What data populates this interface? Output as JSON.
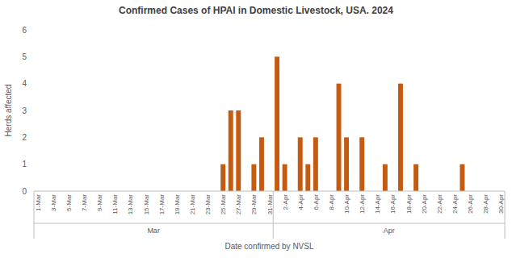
{
  "chart_data": {
    "type": "bar",
    "title": "Confirmed Cases of HPAI in Domestic Livestock, USA. 2024",
    "x_label": "Date confirmed by NVSL",
    "y_label": "Herds affected",
    "categories": [
      "1-Mar",
      null,
      "3-Mar",
      null,
      "5-Mar",
      null,
      "7-Mar",
      null,
      "9-Mar",
      null,
      "11-Mar",
      null,
      "13-Mar",
      null,
      "15-Mar",
      null,
      "17-Mar",
      null,
      "19-Mar",
      null,
      "21-Mar",
      null,
      "23-Mar",
      null,
      "25-Mar",
      null,
      "27-Mar",
      null,
      "29-Mar",
      null,
      "31-Mar",
      null,
      "2-Apr",
      null,
      "4-Apr",
      null,
      "6-Apr",
      null,
      "8-Apr",
      null,
      "10-Apr",
      null,
      "12-Apr",
      null,
      "14-Apr",
      null,
      "16-Apr",
      null,
      "18-Apr",
      null,
      "20-Apr",
      null,
      "22-Apr",
      null,
      "24-Apr",
      null,
      "26-Apr",
      null,
      "28-Apr",
      null,
      "30-Apr"
    ],
    "values": [
      0,
      0,
      0,
      0,
      0,
      0,
      0,
      0,
      0,
      0,
      0,
      0,
      0,
      0,
      0,
      0,
      0,
      0,
      0,
      0,
      0,
      0,
      0,
      0,
      1,
      3,
      3,
      0,
      1,
      2,
      0,
      5,
      1,
      0,
      2,
      1,
      2,
      0,
      0,
      4,
      2,
      0,
      2,
      0,
      0,
      1,
      0,
      4,
      0,
      1,
      0,
      0,
      0,
      0,
      0,
      1,
      0,
      0,
      0,
      0,
      0
    ],
    "category_groups": [
      {
        "label": "Mar",
        "count": 31
      },
      {
        "label": "Apr",
        "count": 30
      }
    ],
    "color": "#c55a11",
    "ylim": [
      0,
      6
    ],
    "yticks": [
      0,
      1,
      2,
      3,
      4,
      5,
      6
    ],
    "grid": false
  }
}
